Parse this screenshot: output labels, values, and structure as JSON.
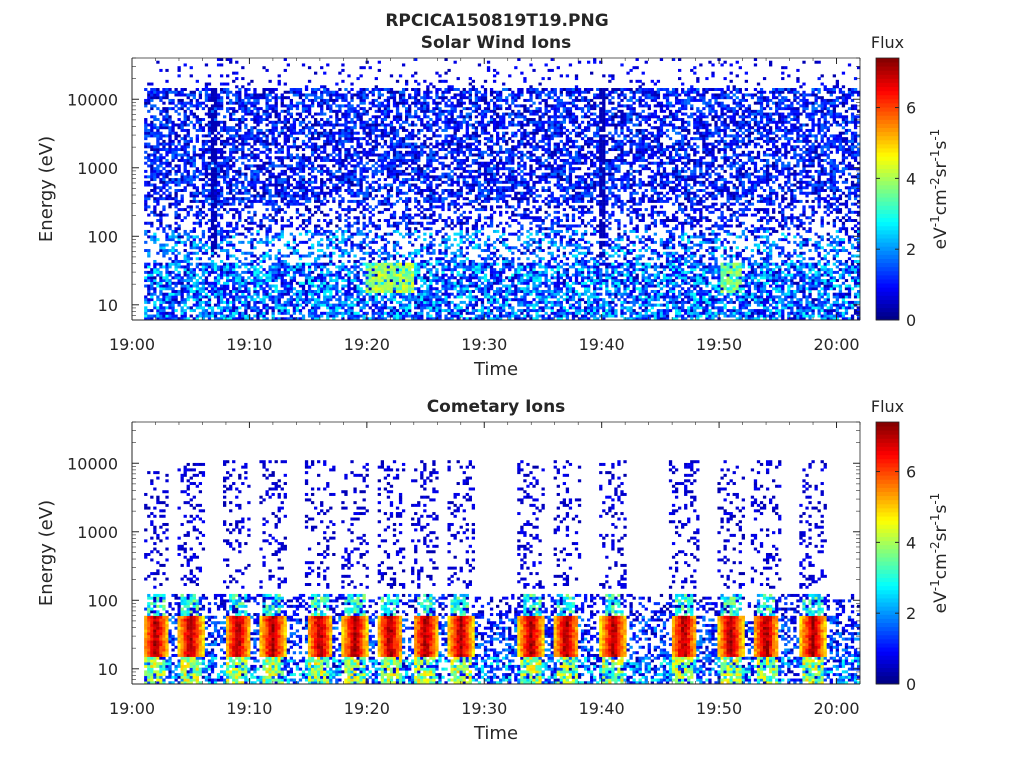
{
  "figure_title": "RPCICA150819T19.PNG",
  "chart_data": [
    {
      "type": "heatmap",
      "title": "Solar Wind Ions",
      "xlabel": "Time",
      "ylabel": "Energy (eV)",
      "x_range": [
        "19:00",
        "20:02"
      ],
      "x_ticks": [
        "19:00",
        "19:10",
        "19:20",
        "19:30",
        "19:40",
        "19:50",
        "20:00"
      ],
      "y_scale": "log",
      "y_range": [
        6,
        40000
      ],
      "y_ticks": [
        "10",
        "100",
        "1000",
        "10000"
      ],
      "colorbar": {
        "title": "Flux",
        "label": "eV-1cm-2sr-1s-1",
        "ticks": [
          "0",
          "2",
          "4",
          "6"
        ],
        "range": [
          0,
          7.4
        ],
        "colormap": "jet"
      },
      "features": {
        "low_energy_band_eV": [
          6,
          40
        ],
        "high_energy_population_eV": [
          300,
          15000
        ],
        "enhanced_intervals": [
          {
            "start": "19:20",
            "end": "19:23",
            "flux": 4.5
          },
          {
            "start": "19:50",
            "end": "19:51",
            "flux": 4.2
          }
        ],
        "vertical_streaks": [
          "19:07",
          "19:40"
        ]
      }
    },
    {
      "type": "heatmap",
      "title": "Cometary Ions",
      "xlabel": "Time",
      "ylabel": "Energy (eV)",
      "x_range": [
        "19:00",
        "20:02"
      ],
      "x_ticks": [
        "19:00",
        "19:10",
        "19:20",
        "19:30",
        "19:40",
        "19:50",
        "20:00"
      ],
      "y_scale": "log",
      "y_range": [
        6,
        40000
      ],
      "y_ticks": [
        "10",
        "100",
        "1000",
        "10000"
      ],
      "colorbar": {
        "title": "Flux",
        "label": "eV-1cm-2sr-1s-1",
        "ticks": [
          "0",
          "2",
          "4",
          "6"
        ],
        "range": [
          0,
          7.4
        ],
        "colormap": "jet"
      },
      "features": {
        "low_energy_band_eV": [
          6,
          120
        ],
        "high_energy_population_eV": [
          150,
          11000
        ],
        "burst_times": [
          "19:02",
          "19:05",
          "19:09",
          "19:12",
          "19:16",
          "19:19",
          "19:22",
          "19:25",
          "19:28",
          "19:34",
          "19:37",
          "19:41",
          "19:47",
          "19:51",
          "19:54",
          "19:58"
        ],
        "peak_flux": 7.2
      }
    }
  ]
}
